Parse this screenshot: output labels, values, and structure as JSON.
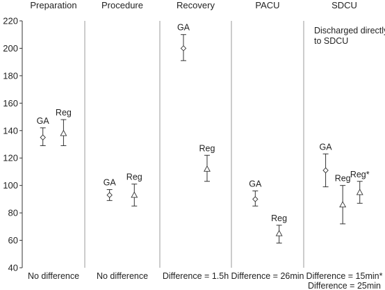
{
  "chart_data": {
    "type": "scatter",
    "title": "",
    "xlabel": "",
    "ylabel": "",
    "ylim": [
      40,
      220
    ],
    "yticks": [
      40,
      60,
      80,
      100,
      120,
      140,
      160,
      180,
      200,
      220
    ],
    "grid": false,
    "markers": {
      "GA": "diamond",
      "Reg": "triangle"
    },
    "panels": [
      {
        "title": "Preparation",
        "footnote": [
          "No difference"
        ],
        "note": [],
        "points": [
          {
            "label": "GA",
            "group": "GA",
            "value": 135,
            "lower": 129,
            "upper": 142
          },
          {
            "label": "Reg",
            "group": "Reg",
            "value": 138,
            "lower": 129,
            "upper": 148
          }
        ]
      },
      {
        "title": "Procedure",
        "footnote": [
          "No difference"
        ],
        "note": [],
        "points": [
          {
            "label": "GA",
            "group": "GA",
            "value": 93,
            "lower": 89,
            "upper": 97
          },
          {
            "label": "Reg",
            "group": "Reg",
            "value": 93,
            "lower": 85,
            "upper": 101
          }
        ]
      },
      {
        "title": "Recovery",
        "footnote": [
          "Difference = 1.5h"
        ],
        "note": [],
        "points": [
          {
            "label": "GA",
            "group": "GA",
            "value": 200,
            "lower": 191,
            "upper": 210
          },
          {
            "label": "Reg",
            "group": "Reg",
            "value": 112,
            "lower": 103,
            "upper": 122
          }
        ]
      },
      {
        "title": "PACU",
        "footnote": [
          "Difference = 26min"
        ],
        "note": [],
        "points": [
          {
            "label": "GA",
            "group": "GA",
            "value": 90,
            "lower": 85,
            "upper": 96
          },
          {
            "label": "Reg",
            "group": "Reg",
            "value": 65,
            "lower": 58,
            "upper": 71
          }
        ]
      },
      {
        "title": "SDCU",
        "footnote": [
          "Difference = 15min*",
          "Difference = 25min"
        ],
        "note": [
          "Discharged directly",
          "to SDCU"
        ],
        "points": [
          {
            "label": "GA",
            "group": "GA",
            "value": 111,
            "lower": 99,
            "upper": 123
          },
          {
            "label": "Reg",
            "group": "Reg",
            "value": 86,
            "lower": 72,
            "upper": 100
          },
          {
            "label": "Reg*",
            "group": "Reg",
            "value": 95,
            "lower": 87,
            "upper": 103
          }
        ]
      }
    ]
  }
}
